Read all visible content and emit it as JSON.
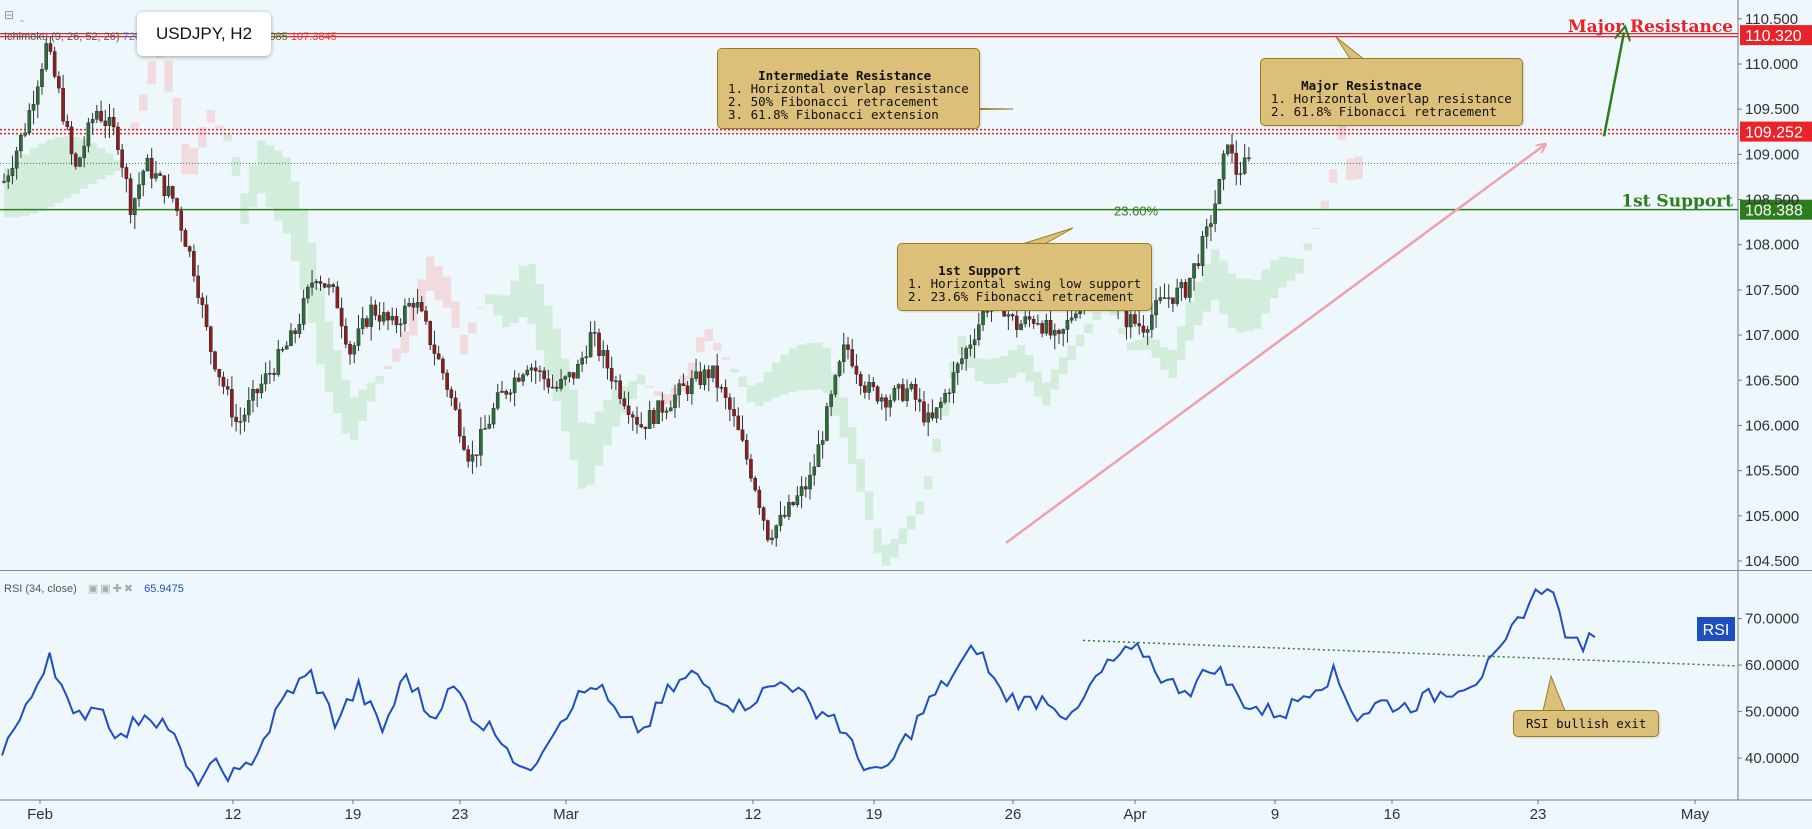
{
  "header": {
    "symbol": "USDJPY, H2",
    "ichimoku": {
      "label": "Ichimoku (9, 26, 52, 26)",
      "values": [
        {
          "text": "720",
          "color": "#2e8bd8"
        },
        {
          "text": "108.4705",
          "color": "#b22222"
        },
        {
          "text": "108.9060",
          "color": "#4caf50"
        },
        {
          "text": "107.6085",
          "color": "#2e7d32"
        },
        {
          "text": "107.3845",
          "color": "#e53935"
        }
      ]
    },
    "rsi_label": "RSI (34, close)",
    "rsi_value": "65.9475"
  },
  "colors": {
    "background": "#eef8fc",
    "bull_candle": "#2f6b3a",
    "bear_candle": "#8b1e1e",
    "resistance": "#e8232a",
    "support": "#2e7d1c",
    "rsi_line": "#1f4fbf",
    "trend_arrow": "#f0a0a8",
    "note_fill": "#dcc07a"
  },
  "levels": {
    "major_resistance": {
      "value": 110.32,
      "label": "Major Resistance",
      "tag": "110.320"
    },
    "intermediate_resistance": {
      "value": 109.252,
      "tag": "109.252"
    },
    "first_support": {
      "value": 108.388,
      "label": "1st Support",
      "tag": "108.388"
    },
    "fib_label": "23.60%"
  },
  "notes": {
    "intermediate": {
      "title": "Intermediate Resistance",
      "lines": [
        "1. Horizontal overlap resistance",
        "2. 50% Fibonacci retracement",
        "3. 61.8% Fibonacci extension"
      ]
    },
    "major": {
      "title": "Major Resistnace",
      "lines": [
        "1. Horizontal overlap resistance",
        "2. 61.8% Fibonacci retracement"
      ]
    },
    "support": {
      "title": "1st Support",
      "lines": [
        "1. Horizontal swing low support",
        "2. 23.6% Fibonacci retracement"
      ]
    },
    "rsi": "RSI bullish exit"
  },
  "rsi_badge": "RSI",
  "chart_data": [
    {
      "type": "candlestick",
      "title": "USDJPY, H2",
      "x_ticks": [
        "Feb",
        "12",
        "19",
        "23",
        "Mar",
        "12",
        "19",
        "26",
        "Apr",
        "9",
        "16",
        "23",
        "May"
      ],
      "y_ticks": [
        "104.500",
        "105.000",
        "105.500",
        "106.000",
        "106.500",
        "107.000",
        "107.500",
        "108.000",
        "108.500",
        "109.000",
        "109.500",
        "110.000",
        "110.500"
      ],
      "ylim": [
        104.4,
        110.62
      ],
      "price_path": [
        {
          "t": 0,
          "p": 108.7
        },
        {
          "t": 3,
          "p": 109.3
        },
        {
          "t": 6,
          "p": 110.2
        },
        {
          "t": 8,
          "p": 109.6
        },
        {
          "t": 10,
          "p": 108.8
        },
        {
          "t": 13,
          "p": 109.5
        },
        {
          "t": 16,
          "p": 109.2
        },
        {
          "t": 18,
          "p": 108.4
        },
        {
          "t": 20,
          "p": 108.9
        },
        {
          "t": 24,
          "p": 108.5
        },
        {
          "t": 27,
          "p": 107.7
        },
        {
          "t": 29,
          "p": 106.9
        },
        {
          "t": 33,
          "p": 106.0
        },
        {
          "t": 36,
          "p": 106.4
        },
        {
          "t": 41,
          "p": 107.0
        },
        {
          "t": 44,
          "p": 107.7
        },
        {
          "t": 47,
          "p": 107.4
        },
        {
          "t": 49,
          "p": 106.8
        },
        {
          "t": 52,
          "p": 107.3
        },
        {
          "t": 55,
          "p": 107.1
        },
        {
          "t": 58,
          "p": 107.4
        },
        {
          "t": 62,
          "p": 106.6
        },
        {
          "t": 66,
          "p": 105.6
        },
        {
          "t": 70,
          "p": 106.3
        },
        {
          "t": 74,
          "p": 106.7
        },
        {
          "t": 78,
          "p": 106.4
        },
        {
          "t": 81,
          "p": 106.6
        },
        {
          "t": 83,
          "p": 107.0
        },
        {
          "t": 87,
          "p": 106.4
        },
        {
          "t": 90,
          "p": 106.0
        },
        {
          "t": 93,
          "p": 106.2
        },
        {
          "t": 96,
          "p": 106.4
        },
        {
          "t": 100,
          "p": 106.6
        },
        {
          "t": 103,
          "p": 106.1
        },
        {
          "t": 106,
          "p": 105.4
        },
        {
          "t": 108,
          "p": 104.8
        },
        {
          "t": 110,
          "p": 104.95
        },
        {
          "t": 114,
          "p": 105.4
        },
        {
          "t": 117,
          "p": 106.3
        },
        {
          "t": 119,
          "p": 106.9
        },
        {
          "t": 122,
          "p": 106.4
        },
        {
          "t": 125,
          "p": 106.3
        },
        {
          "t": 128,
          "p": 106.4
        },
        {
          "t": 131,
          "p": 106.0
        },
        {
          "t": 134,
          "p": 106.5
        },
        {
          "t": 137,
          "p": 107.0
        },
        {
          "t": 140,
          "p": 107.5
        },
        {
          "t": 143,
          "p": 107.1
        },
        {
          "t": 146,
          "p": 107.2
        },
        {
          "t": 149,
          "p": 106.9
        },
        {
          "t": 152,
          "p": 107.4
        },
        {
          "t": 155,
          "p": 107.7
        },
        {
          "t": 158,
          "p": 107.2
        },
        {
          "t": 161,
          "p": 107.1
        },
        {
          "t": 164,
          "p": 107.4
        },
        {
          "t": 167,
          "p": 107.5
        },
        {
          "t": 170,
          "p": 108.1
        },
        {
          "t": 172,
          "p": 108.7
        },
        {
          "t": 173,
          "p": 109.2
        },
        {
          "t": 174,
          "p": 108.8
        },
        {
          "t": 176,
          "p": 108.9
        }
      ]
    },
    {
      "type": "line",
      "title": "RSI (34, close)",
      "y_ticks": [
        "40.0000",
        "50.0000",
        "60.0000",
        "70.0000"
      ],
      "ylim": [
        31,
        80
      ],
      "series": [
        {
          "values": [
            42,
            50,
            63,
            48,
            52,
            44,
            50,
            47,
            35,
            38,
            36,
            44,
            54,
            58,
            48,
            55,
            46,
            58,
            49,
            55,
            48,
            45,
            36,
            45,
            52,
            56,
            48,
            46,
            54,
            58,
            54,
            51,
            54,
            57,
            51,
            49,
            40,
            36,
            44,
            52,
            58,
            64,
            54,
            52,
            53,
            48,
            57,
            62,
            63,
            56,
            55,
            60,
            53,
            50,
            50,
            55,
            58,
            49,
            52,
            51,
            53,
            55,
            57,
            62,
            72,
            78,
            64,
            66
          ]
        }
      ]
    }
  ]
}
